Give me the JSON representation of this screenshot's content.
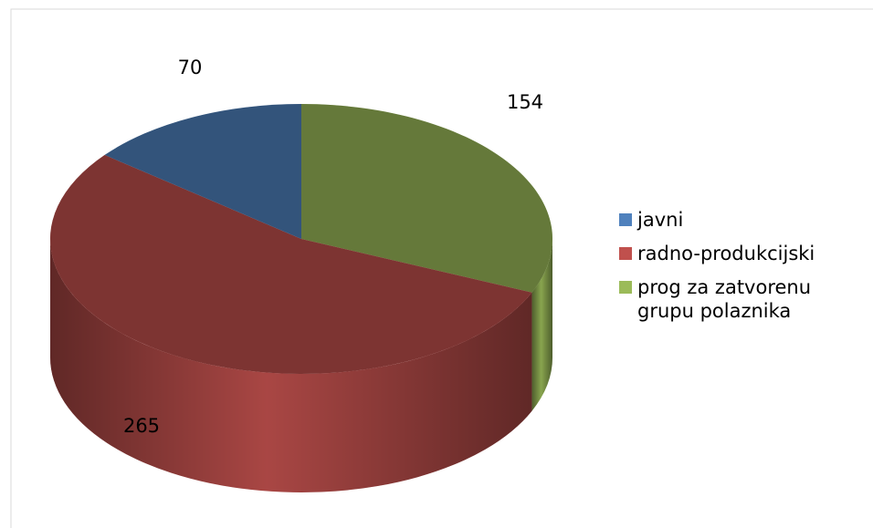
{
  "chart_data": {
    "type": "pie3d",
    "series": [
      {
        "name": "javni",
        "color": "#4f81bd"
      },
      {
        "name": "radno-produkcijski",
        "color": "#c0504d"
      },
      {
        "name": "prog za zatvorenu grupu polaznika",
        "color": "#9bbb59"
      }
    ],
    "values": [
      70,
      265,
      154
    ],
    "legend": "right"
  }
}
